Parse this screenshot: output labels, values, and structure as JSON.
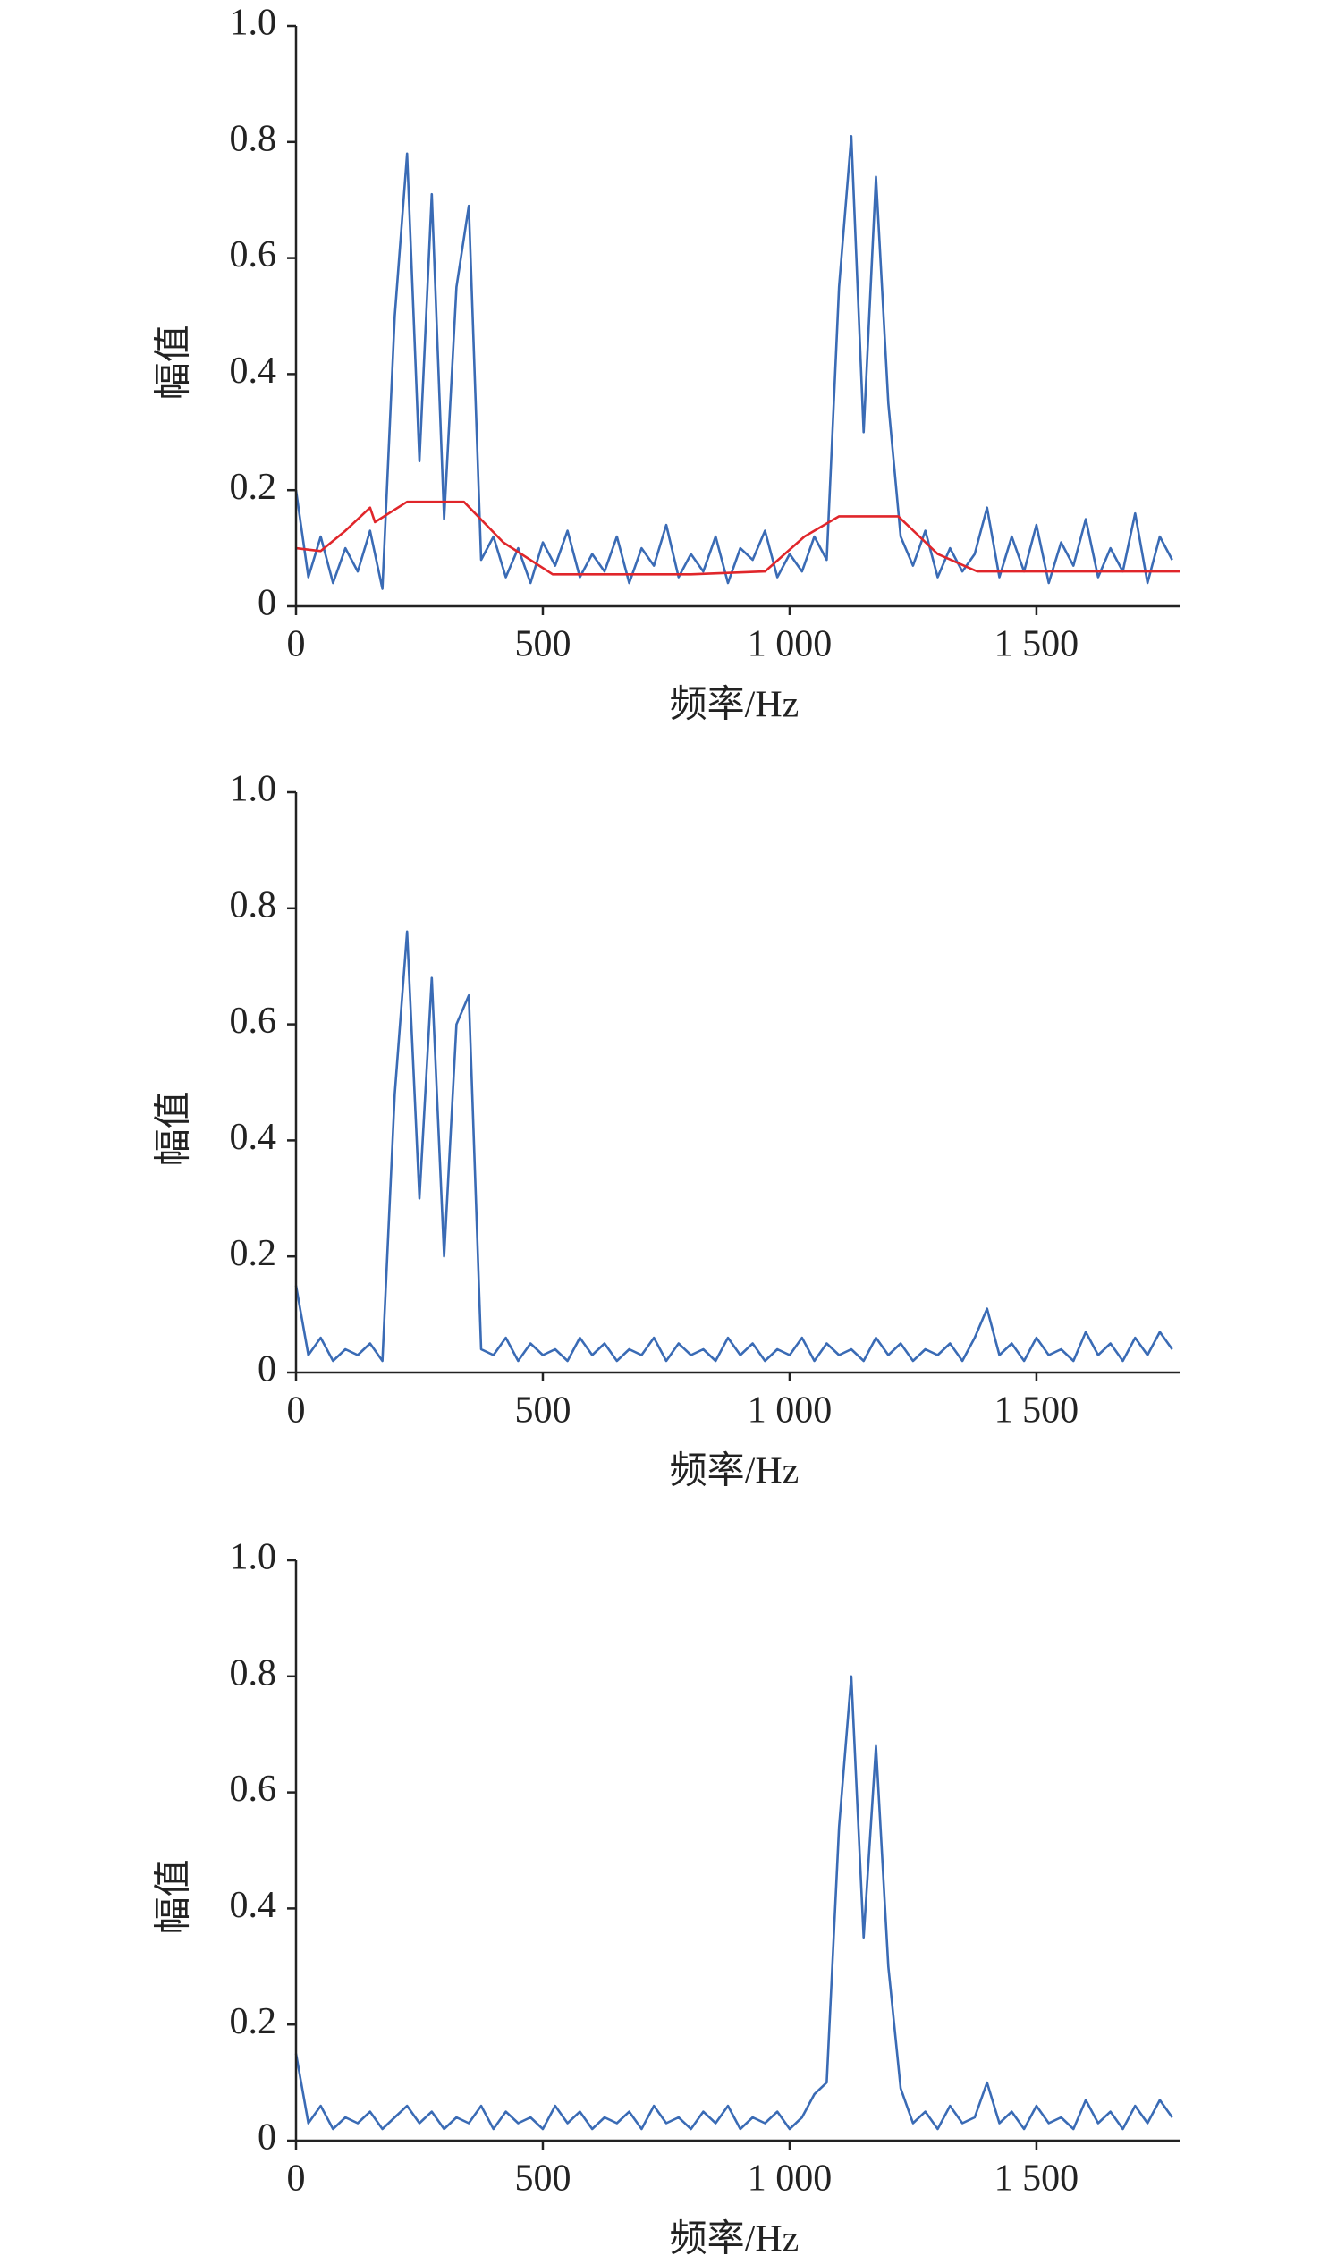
{
  "chart_data": [
    {
      "type": "line",
      "xlabel": "频率/Hz",
      "ylabel": "幅值",
      "x": [
        0,
        25,
        50,
        75,
        100,
        125,
        150,
        175,
        200,
        225,
        250,
        275,
        300,
        325,
        350,
        375,
        400,
        425,
        450,
        475,
        500,
        525,
        550,
        575,
        600,
        625,
        650,
        675,
        700,
        725,
        750,
        775,
        800,
        825,
        850,
        875,
        900,
        925,
        950,
        975,
        1000,
        1025,
        1050,
        1075,
        1100,
        1125,
        1150,
        1175,
        1200,
        1225,
        1250,
        1275,
        1300,
        1325,
        1350,
        1375,
        1400,
        1425,
        1450,
        1475,
        1500,
        1525,
        1550,
        1575,
        1600,
        1625,
        1650,
        1675,
        1700,
        1725,
        1750,
        1775
      ],
      "series": [
        {
          "color": "#3a6bb5",
          "values": [
            0.2,
            0.05,
            0.12,
            0.04,
            0.1,
            0.06,
            0.13,
            0.03,
            0.5,
            0.78,
            0.25,
            0.71,
            0.15,
            0.55,
            0.69,
            0.08,
            0.12,
            0.05,
            0.1,
            0.04,
            0.11,
            0.07,
            0.13,
            0.05,
            0.09,
            0.06,
            0.12,
            0.04,
            0.1,
            0.07,
            0.14,
            0.05,
            0.09,
            0.06,
            0.12,
            0.04,
            0.1,
            0.08,
            0.13,
            0.05,
            0.09,
            0.06,
            0.12,
            0.08,
            0.55,
            0.81,
            0.3,
            0.74,
            0.35,
            0.12,
            0.07,
            0.13,
            0.05,
            0.1,
            0.06,
            0.09,
            0.17,
            0.05,
            0.12,
            0.06,
            0.14,
            0.04,
            0.11,
            0.07,
            0.15,
            0.05,
            0.1,
            0.06,
            0.16,
            0.04,
            0.12,
            0.08
          ]
        },
        {
          "color": "#e0262b",
          "x": [
            0,
            50,
            100,
            150,
            160,
            225,
            340,
            420,
            520,
            800,
            950,
            1030,
            1100,
            1220,
            1300,
            1380,
            1790
          ],
          "values": [
            0.1,
            0.095,
            0.13,
            0.17,
            0.145,
            0.18,
            0.18,
            0.11,
            0.055,
            0.055,
            0.06,
            0.12,
            0.155,
            0.155,
            0.09,
            0.06,
            0.06
          ]
        }
      ],
      "xlim": [
        0,
        1790
      ],
      "ylim": [
        0,
        1
      ],
      "xticks": [
        0,
        500,
        {
          "value": 1000,
          "label": "1 000"
        },
        {
          "value": 1500,
          "label": "1 500"
        }
      ],
      "yticks": [
        0,
        0.2,
        0.4,
        0.6,
        0.8,
        {
          "value": 1,
          "label": "1.0"
        }
      ]
    },
    {
      "type": "line",
      "xlabel": "频率/Hz",
      "ylabel": "幅值",
      "x": [
        0,
        25,
        50,
        75,
        100,
        125,
        150,
        175,
        200,
        225,
        250,
        275,
        300,
        325,
        350,
        375,
        400,
        425,
        450,
        475,
        500,
        525,
        550,
        575,
        600,
        625,
        650,
        675,
        700,
        725,
        750,
        775,
        800,
        825,
        850,
        875,
        900,
        925,
        950,
        975,
        1000,
        1025,
        1050,
        1075,
        1100,
        1125,
        1150,
        1175,
        1200,
        1225,
        1250,
        1275,
        1300,
        1325,
        1350,
        1375,
        1400,
        1425,
        1450,
        1475,
        1500,
        1525,
        1550,
        1575,
        1600,
        1625,
        1650,
        1675,
        1700,
        1725,
        1750,
        1775
      ],
      "series": [
        {
          "color": "#3a6bb5",
          "values": [
            0.15,
            0.03,
            0.06,
            0.02,
            0.04,
            0.03,
            0.05,
            0.02,
            0.48,
            0.76,
            0.3,
            0.68,
            0.2,
            0.6,
            0.65,
            0.04,
            0.03,
            0.06,
            0.02,
            0.05,
            0.03,
            0.04,
            0.02,
            0.06,
            0.03,
            0.05,
            0.02,
            0.04,
            0.03,
            0.06,
            0.02,
            0.05,
            0.03,
            0.04,
            0.02,
            0.06,
            0.03,
            0.05,
            0.02,
            0.04,
            0.03,
            0.06,
            0.02,
            0.05,
            0.03,
            0.04,
            0.02,
            0.06,
            0.03,
            0.05,
            0.02,
            0.04,
            0.03,
            0.05,
            0.02,
            0.06,
            0.11,
            0.03,
            0.05,
            0.02,
            0.06,
            0.03,
            0.04,
            0.02,
            0.07,
            0.03,
            0.05,
            0.02,
            0.06,
            0.03,
            0.07,
            0.04
          ]
        }
      ],
      "xlim": [
        0,
        1790
      ],
      "ylim": [
        0,
        1
      ],
      "xticks": [
        0,
        500,
        {
          "value": 1000,
          "label": "1 000"
        },
        {
          "value": 1500,
          "label": "1 500"
        }
      ],
      "yticks": [
        0,
        0.2,
        0.4,
        0.6,
        0.8,
        {
          "value": 1,
          "label": "1.0"
        }
      ]
    },
    {
      "type": "line",
      "xlabel": "频率/Hz",
      "ylabel": "幅值",
      "x": [
        0,
        25,
        50,
        75,
        100,
        125,
        150,
        175,
        200,
        225,
        250,
        275,
        300,
        325,
        350,
        375,
        400,
        425,
        450,
        475,
        500,
        525,
        550,
        575,
        600,
        625,
        650,
        675,
        700,
        725,
        750,
        775,
        800,
        825,
        850,
        875,
        900,
        925,
        950,
        975,
        1000,
        1025,
        1050,
        1075,
        1100,
        1125,
        1150,
        1175,
        1200,
        1225,
        1250,
        1275,
        1300,
        1325,
        1350,
        1375,
        1400,
        1425,
        1450,
        1475,
        1500,
        1525,
        1550,
        1575,
        1600,
        1625,
        1650,
        1675,
        1700,
        1725,
        1750,
        1775
      ],
      "series": [
        {
          "color": "#3a6bb5",
          "values": [
            0.15,
            0.03,
            0.06,
            0.02,
            0.04,
            0.03,
            0.05,
            0.02,
            0.04,
            0.06,
            0.03,
            0.05,
            0.02,
            0.04,
            0.03,
            0.06,
            0.02,
            0.05,
            0.03,
            0.04,
            0.02,
            0.06,
            0.03,
            0.05,
            0.02,
            0.04,
            0.03,
            0.05,
            0.02,
            0.06,
            0.03,
            0.04,
            0.02,
            0.05,
            0.03,
            0.06,
            0.02,
            0.04,
            0.03,
            0.05,
            0.02,
            0.04,
            0.08,
            0.1,
            0.54,
            0.8,
            0.35,
            0.68,
            0.3,
            0.09,
            0.03,
            0.05,
            0.02,
            0.06,
            0.03,
            0.04,
            0.1,
            0.03,
            0.05,
            0.02,
            0.06,
            0.03,
            0.04,
            0.02,
            0.07,
            0.03,
            0.05,
            0.02,
            0.06,
            0.03,
            0.07,
            0.04
          ]
        }
      ],
      "xlim": [
        0,
        1790
      ],
      "ylim": [
        0,
        1
      ],
      "xticks": [
        0,
        500,
        {
          "value": 1000,
          "label": "1 000"
        },
        {
          "value": 1500,
          "label": "1 500"
        }
      ],
      "yticks": [
        0,
        0.2,
        0.4,
        0.6,
        0.8,
        {
          "value": 1,
          "label": "1.0"
        }
      ]
    }
  ]
}
